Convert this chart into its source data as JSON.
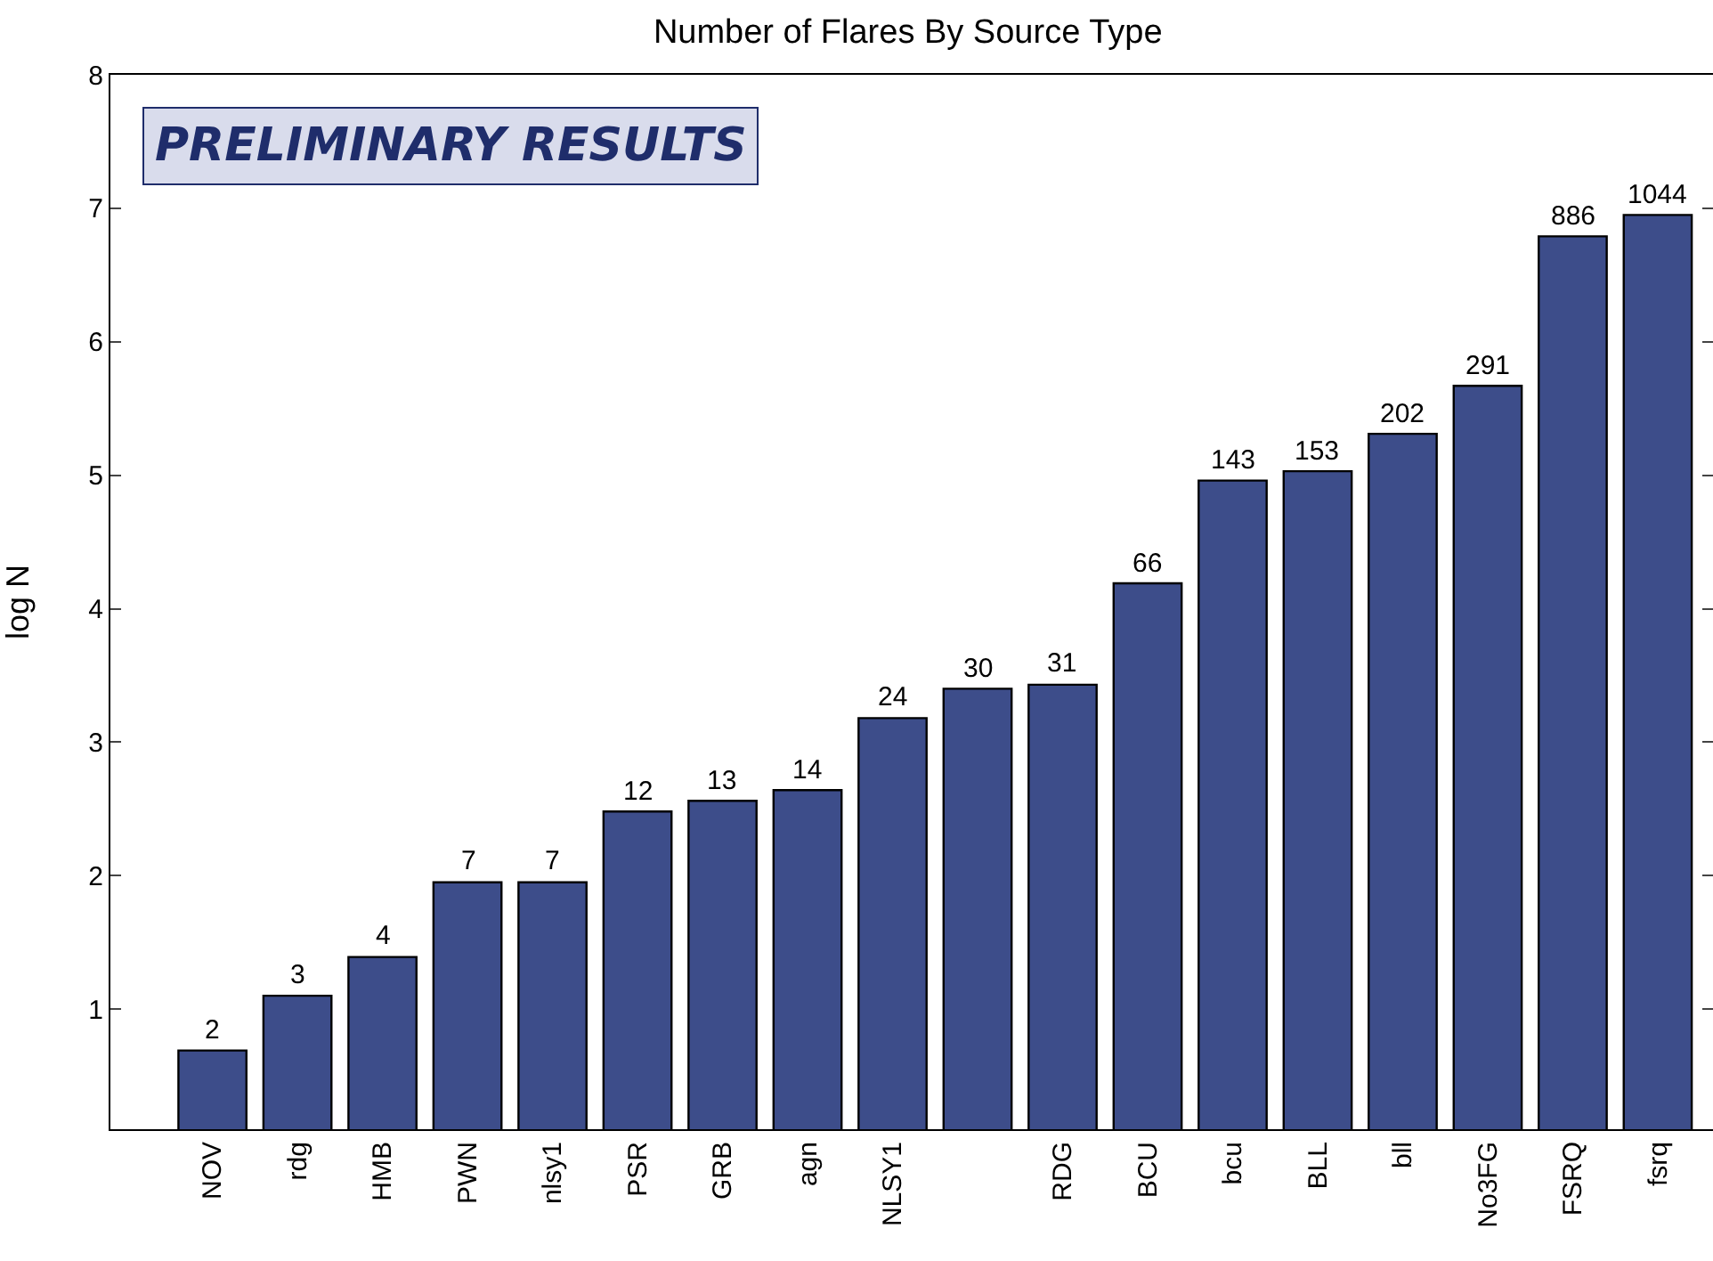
{
  "chart_data": {
    "type": "bar",
    "title": "Number of Flares By Source Type",
    "ylabel": "log N",
    "categories": [
      "NOV",
      "rdg",
      "HMB",
      "PWN",
      "nlsy1",
      "PSR",
      "GRB",
      "agn",
      "NLSY1",
      null,
      "RDG",
      "BCU",
      "bcu",
      "BLL",
      "bll",
      "No3FG",
      "FSRQ",
      "fsrq"
    ],
    "values": [
      0.69,
      1.1,
      1.39,
      1.95,
      1.95,
      2.48,
      2.56,
      2.64,
      3.18,
      3.4,
      3.43,
      4.19,
      4.96,
      5.03,
      5.31,
      5.67,
      6.79,
      6.95
    ],
    "color": "#3d4d8a",
    "ylim": [
      0.1,
      8
    ],
    "yticks": [
      1,
      2,
      3,
      4,
      5,
      6,
      7,
      8
    ],
    "grid": false,
    "legend": false,
    "annotations": [
      "PRELIMINARY RESULTS",
      {
        "text": "2",
        "x": "NOV",
        "y": 0.69
      },
      {
        "text": "3",
        "x": "rdg",
        "y": 1.1
      },
      {
        "text": "4",
        "x": "HMB",
        "y": 1.39
      },
      {
        "text": "7",
        "x": "PWN",
        "y": 1.95
      },
      {
        "text": "7",
        "x": "nlsy1",
        "y": 1.95
      },
      {
        "text": "12",
        "x": "PSR",
        "y": 2.48
      },
      {
        "text": "13",
        "x": "GRB",
        "y": 2.56
      },
      {
        "text": "14",
        "x": "agn",
        "y": 2.64
      },
      {
        "text": "24",
        "x": "NLSY1",
        "y": 3.18
      },
      {
        "text": "30",
        "y": 3.4
      },
      {
        "text": "31",
        "x": "RDG",
        "y": 3.43
      },
      {
        "text": "66",
        "x": "BCU",
        "y": 4.19
      },
      {
        "text": "143",
        "x": "bcu",
        "y": 4.96
      },
      {
        "text": "153",
        "x": "BLL",
        "y": 5.03
      },
      {
        "text": "202",
        "x": "bll",
        "y": 5.31
      },
      {
        "text": "291",
        "x": "No3FG",
        "y": 5.67
      },
      {
        "text": "886",
        "x": "FSRQ",
        "y": 6.79
      },
      {
        "text": "1044",
        "x": "fsrq",
        "y": 6.95
      }
    ]
  }
}
